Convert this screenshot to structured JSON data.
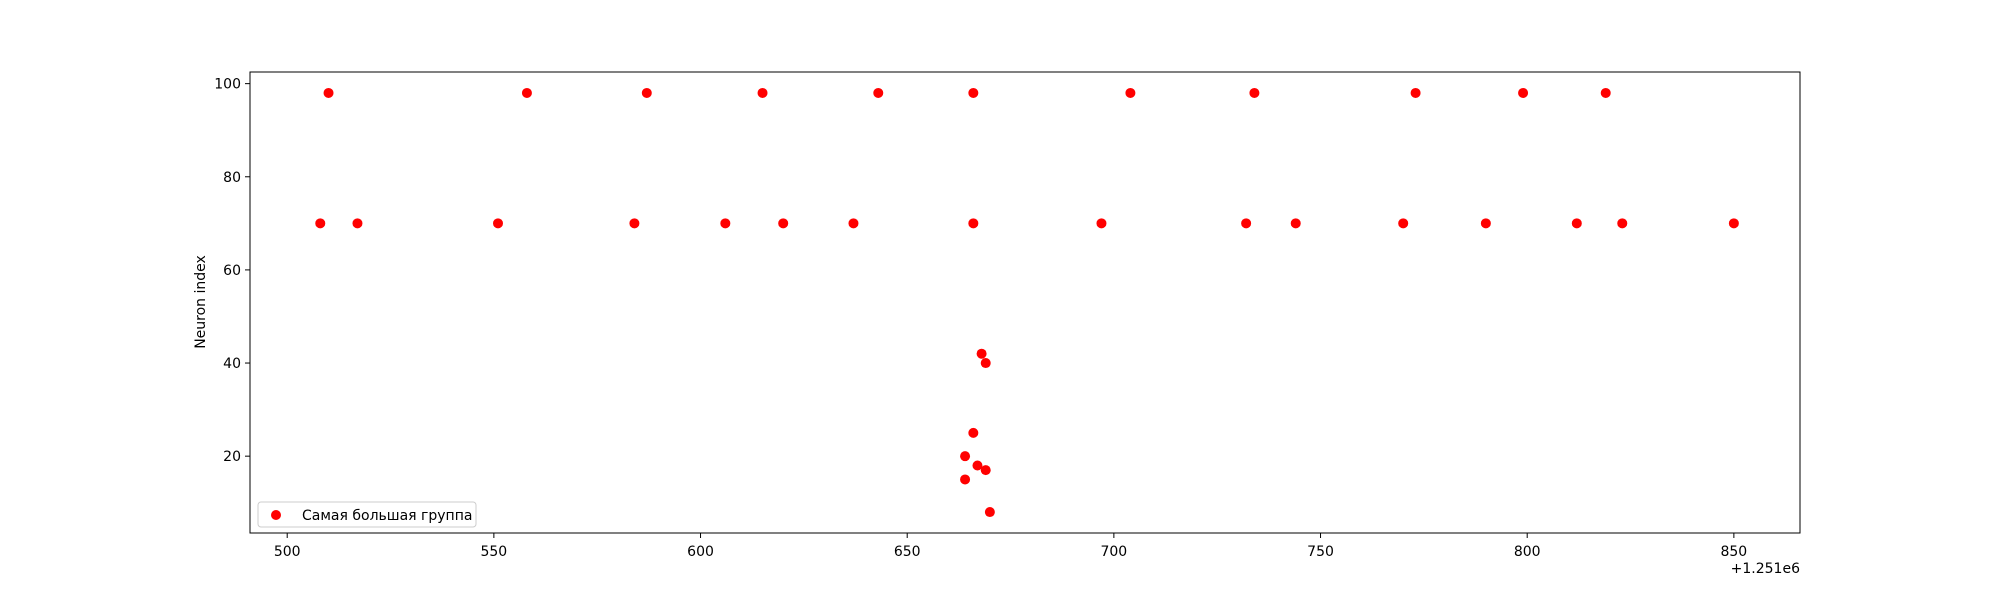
{
  "chart_data": {
    "type": "scatter",
    "title": "",
    "xlabel": "",
    "ylabel": "Neuron index",
    "x_offset_label": "+1.251e6",
    "xlim": [
      491,
      866
    ],
    "ylim": [
      3.5,
      102.5
    ],
    "xticks": [
      500,
      550,
      600,
      650,
      700,
      750,
      800,
      850
    ],
    "yticks": [
      20,
      40,
      60,
      80,
      100
    ],
    "grid": false,
    "legend_position": "lower-left",
    "color": "#ff0000",
    "series": [
      {
        "name": "Самая большая группа",
        "points": [
          [
            508,
            70
          ],
          [
            510,
            98
          ],
          [
            517,
            70
          ],
          [
            551,
            70
          ],
          [
            558,
            98
          ],
          [
            584,
            70
          ],
          [
            587,
            98
          ],
          [
            606,
            70
          ],
          [
            615,
            98
          ],
          [
            620,
            70
          ],
          [
            637,
            70
          ],
          [
            643,
            98
          ],
          [
            664,
            20
          ],
          [
            664,
            15
          ],
          [
            666,
            25
          ],
          [
            666,
            98
          ],
          [
            666,
            70
          ],
          [
            667,
            18
          ],
          [
            668,
            42
          ],
          [
            669,
            40
          ],
          [
            669,
            17
          ],
          [
            670,
            8
          ],
          [
            697,
            70
          ],
          [
            704,
            98
          ],
          [
            732,
            70
          ],
          [
            734,
            98
          ],
          [
            744,
            70
          ],
          [
            770,
            70
          ],
          [
            773,
            98
          ],
          [
            790,
            70
          ],
          [
            799,
            98
          ],
          [
            812,
            70
          ],
          [
            819,
            98
          ],
          [
            823,
            70
          ],
          [
            850,
            70
          ]
        ]
      }
    ]
  }
}
